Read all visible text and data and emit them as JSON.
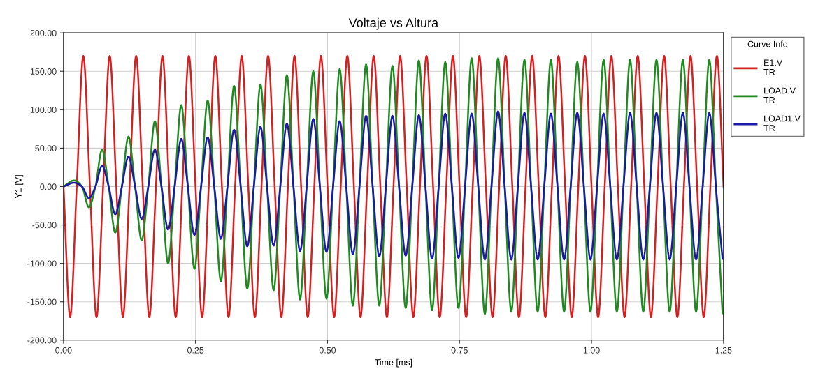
{
  "chart_data": {
    "type": "line",
    "title": "Voltaje vs Altura",
    "xlabel": "Time [ms]",
    "ylabel": "Y1 [V]",
    "legend_title": "Curve Info",
    "legend": "top right",
    "grid": true,
    "marker": "none",
    "line_style": "solid",
    "xlim": [
      0,
      1.25
    ],
    "xticks": [
      {
        "value": 0,
        "label": "0.00"
      },
      {
        "value": 0.25,
        "label": "0.25"
      },
      {
        "value": 0.5,
        "label": "0.50"
      },
      {
        "value": 0.75,
        "label": "0.75"
      },
      {
        "value": 1,
        "label": "1.00"
      },
      {
        "value": 1.25,
        "label": "1.25"
      }
    ],
    "ylim": [
      -200,
      200
    ],
    "yticks": [
      {
        "value": -200,
        "label": "-200.00"
      },
      {
        "value": -150,
        "label": "-150.00"
      },
      {
        "value": -100,
        "label": "-100.00"
      },
      {
        "value": -50,
        "label": "-50.00"
      },
      {
        "value": 0,
        "label": "0.00"
      },
      {
        "value": 50,
        "label": "50.00"
      },
      {
        "value": 100,
        "label": "100.00"
      },
      {
        "value": 150,
        "label": "150.00"
      },
      {
        "value": 200,
        "label": "200.00"
      }
    ],
    "x": [
      0,
      0.02,
      0.035,
      0.048,
      0.0605,
      0.073,
      0.0855,
      0.098,
      0.1105,
      0.123,
      0.1355,
      0.148,
      0.1605,
      0.173,
      0.1855,
      0.198,
      0.2105,
      0.223,
      0.2355,
      0.248,
      0.2605,
      0.273,
      0.2855,
      0.298,
      0.3105,
      0.323,
      0.3355,
      0.348,
      0.3605,
      0.373,
      0.3855,
      0.398,
      0.4105,
      0.423,
      0.4355,
      0.448,
      0.4605,
      0.473,
      0.4855,
      0.498,
      0.5105,
      0.523,
      0.5355,
      0.548,
      0.5605,
      0.573,
      0.5855,
      0.598,
      0.6105,
      0.623,
      0.6355,
      0.648,
      0.6605,
      0.673,
      0.6855,
      0.698,
      0.7105,
      0.723,
      0.7355,
      0.748,
      0.7605,
      0.773,
      0.7855,
      0.798,
      0.8105,
      0.823,
      0.8355,
      0.848,
      0.8605,
      0.873,
      0.8855,
      0.898,
      0.9105,
      0.923,
      0.9355,
      0.948,
      0.9605,
      0.973,
      0.9855,
      0.998,
      1.0105,
      1.023,
      1.0355,
      1.048,
      1.0605,
      1.073,
      1.0855,
      1.098,
      1.1105,
      1.123,
      1.1355,
      1.148,
      1.1605,
      1.173,
      1.1855,
      1.198,
      1.2105,
      1.223,
      1.2355,
      1.248
    ],
    "series": [
      {
        "name": "E1.V\nTR",
        "color": "#d42020",
        "x": [
          0,
          0.0125,
          0.025,
          0.0375,
          0.05,
          0.0625,
          0.075,
          0.0875,
          0.1,
          0.1125,
          0.125,
          0.1375,
          0.15,
          0.1625,
          0.175,
          0.1875,
          0.2,
          0.2125,
          0.225,
          0.2375,
          0.25,
          0.2625,
          0.275,
          0.2875,
          0.3,
          0.3125,
          0.325,
          0.3375,
          0.35,
          0.3625,
          0.375,
          0.3875,
          0.4,
          0.4125,
          0.425,
          0.4375,
          0.45,
          0.4625,
          0.475,
          0.4875,
          0.5,
          0.5125,
          0.525,
          0.5375,
          0.55,
          0.5625,
          0.575,
          0.5875,
          0.6,
          0.6125,
          0.625,
          0.6375,
          0.65,
          0.6625,
          0.675,
          0.6875,
          0.7,
          0.7125,
          0.725,
          0.7375,
          0.75,
          0.7625,
          0.775,
          0.7875,
          0.8,
          0.8125,
          0.825,
          0.8375,
          0.85,
          0.8625,
          0.875,
          0.8875,
          0.9,
          0.9125,
          0.925,
          0.9375,
          0.95,
          0.9625,
          0.975,
          0.9875,
          1,
          1.0125,
          1.025,
          1.0375,
          1.05,
          1.0625,
          1.075,
          1.0875,
          1.1,
          1.1125,
          1.125,
          1.1375,
          1.15,
          1.1625,
          1.175,
          1.1875,
          1.2,
          1.2125,
          1.225,
          1.2375,
          1.25
        ],
        "values": [
          0,
          -170,
          0,
          170,
          0,
          -170,
          0,
          170,
          0,
          -170,
          0,
          170,
          0,
          -170,
          0,
          170,
          0,
          -170,
          0,
          170,
          0,
          -170,
          0,
          170,
          0,
          -170,
          0,
          170,
          0,
          -170,
          0,
          170,
          0,
          -170,
          0,
          170,
          0,
          -170,
          0,
          170,
          0,
          -170,
          0,
          170,
          0,
          -170,
          0,
          170,
          0,
          -170,
          0,
          170,
          0,
          -170,
          0,
          170,
          0,
          -170,
          0,
          170,
          0,
          -170,
          0,
          170,
          0,
          -170,
          0,
          170,
          0,
          -170,
          0,
          170,
          0,
          -170,
          0,
          170,
          0,
          -170,
          0,
          170,
          0,
          -170,
          0,
          170,
          0,
          -170,
          0,
          170,
          0,
          -170,
          0,
          170,
          0,
          -170,
          0,
          170,
          0,
          -170,
          0,
          170,
          0
        ]
      },
      {
        "name": "LOAD.V\nTR",
        "color": "#1f8a1f",
        "values": [
          0,
          8,
          0,
          -27,
          0,
          48,
          0,
          -60,
          0,
          65,
          0,
          -70,
          0,
          85,
          0,
          -100,
          0,
          106,
          0,
          -107,
          0,
          112,
          0,
          -123,
          0,
          131,
          0,
          -133,
          0,
          133,
          0,
          -135,
          0,
          145,
          0,
          -147,
          0,
          150,
          0,
          -146,
          0,
          153,
          0,
          -155,
          0,
          159,
          0,
          -155,
          0,
          157,
          0,
          -158,
          0,
          164,
          0,
          -161,
          0,
          162,
          0,
          -158,
          0,
          167,
          0,
          -166,
          0,
          167,
          0,
          -163,
          0,
          165,
          0,
          -163,
          0,
          165,
          0,
          -163,
          0,
          162,
          0,
          -163,
          0,
          165,
          0,
          -163,
          0,
          165,
          0,
          -163,
          0,
          165,
          0,
          -163,
          0,
          165,
          0,
          -163,
          0,
          165,
          0,
          -165
        ]
      },
      {
        "name": "LOAD1.V\nTR",
        "color": "#1a1aa8",
        "values": [
          0,
          5,
          0,
          -15,
          0,
          27,
          0,
          -36,
          0,
          39,
          0,
          -42,
          0,
          48,
          0,
          -56,
          0,
          62,
          0,
          -63,
          0,
          64,
          0,
          -68,
          0,
          74,
          0,
          -78,
          0,
          78,
          0,
          -77,
          0,
          82,
          0,
          -84,
          0,
          88,
          0,
          -85,
          0,
          85,
          0,
          -88,
          0,
          92,
          0,
          -91,
          0,
          92,
          0,
          -90,
          0,
          93,
          0,
          -94,
          0,
          95,
          0,
          -93,
          0,
          95,
          0,
          -95,
          0,
          98,
          0,
          -95,
          0,
          96,
          0,
          -95,
          0,
          95,
          0,
          -95,
          0,
          96,
          0,
          -95,
          0,
          95,
          0,
          -95,
          0,
          96,
          0,
          -95,
          0,
          96,
          0,
          -95,
          0,
          96,
          0,
          -95,
          0,
          96,
          0,
          -94
        ]
      }
    ]
  }
}
